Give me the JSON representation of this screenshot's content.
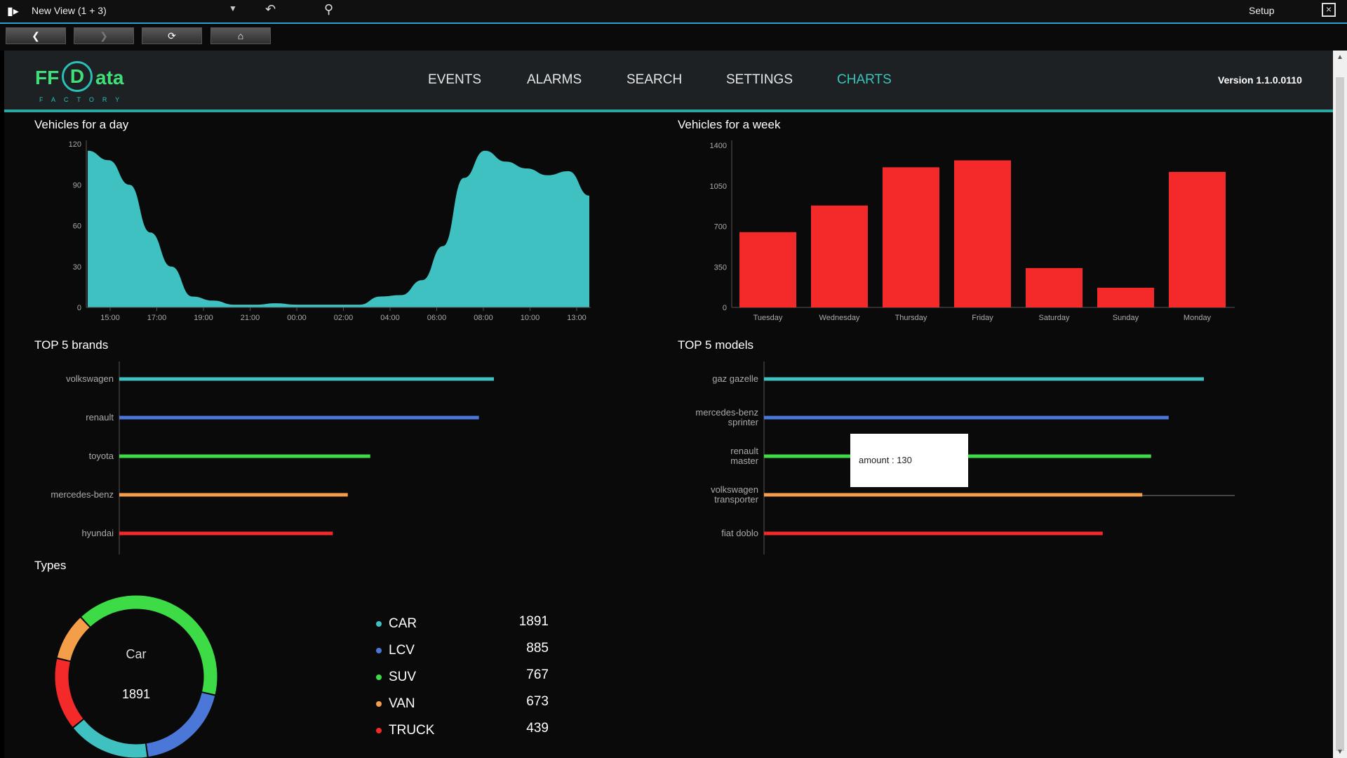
{
  "window": {
    "title": "New View (1 + 3)",
    "setup_label": "Setup"
  },
  "logo": {
    "ff": "FF",
    "d": "D",
    "ata": "ata",
    "factory": "FACTORY"
  },
  "menu": {
    "items": [
      "EVENTS",
      "ALARMS",
      "SEARCH",
      "SETTINGS",
      "CHARTS"
    ],
    "active": "CHARTS"
  },
  "version": "Version 1.1.0.0110",
  "panels": {
    "day_title": "Vehicles for a day",
    "week_title": "Vehicles for a week",
    "brands_title": "TOP 5 brands",
    "models_title": "TOP 5 models",
    "types_title": "Types"
  },
  "tooltip": {
    "text": "amount : 130"
  },
  "donut": {
    "label": "Car",
    "value": "1891"
  },
  "chart_data": [
    {
      "type": "area",
      "color": "#3ec1c0",
      "ylim": [
        0,
        120
      ],
      "yticks": [
        "0",
        "30",
        "60",
        "90",
        "120"
      ],
      "xticks": [
        "15:00",
        "17:00",
        "19:00",
        "21:00",
        "00:00",
        "02:00",
        "04:00",
        "06:00",
        "08:00",
        "10:00",
        "13:00"
      ],
      "values": [
        115,
        108,
        90,
        55,
        30,
        8,
        5,
        2,
        2,
        3,
        2,
        2,
        2,
        2,
        8,
        9,
        20,
        45,
        95,
        115,
        107,
        102,
        97,
        100,
        82
      ]
    },
    {
      "type": "bar",
      "color": "#f42a2a",
      "ylim": [
        0,
        1400
      ],
      "yticks": [
        "0",
        "350",
        "700",
        "1050",
        "1400"
      ],
      "categories": [
        "Tuesday",
        "Wednesday",
        "Thursday",
        "Friday",
        "Saturday",
        "Sunday",
        "Monday"
      ],
      "values": [
        650,
        880,
        1210,
        1270,
        340,
        170,
        1170
      ]
    },
    {
      "type": "bar",
      "orientation": "horizontal",
      "categories": [
        "volkswagen",
        "renault",
        "toyota",
        "mercedes-benz",
        "hyundai"
      ],
      "values": [
        100,
        96,
        67,
        61,
        57
      ],
      "colors": [
        "#3ec1c0",
        "#4b78d8",
        "#3ddc46",
        "#f59e4a",
        "#f42a2a"
      ]
    },
    {
      "type": "bar",
      "orientation": "horizontal",
      "categories": [
        [
          "gaz gazelle"
        ],
        [
          "mercedes-benz",
          "sprinter"
        ],
        [
          "renault",
          "master"
        ],
        [
          "volkswagen",
          "transporter"
        ],
        [
          "fiat doblo"
        ]
      ],
      "values": [
        100,
        92,
        88,
        86,
        77
      ],
      "colors": [
        "#3ec1c0",
        "#4b78d8",
        "#3ddc46",
        "#f59e4a",
        "#f42a2a"
      ]
    },
    {
      "type": "pie",
      "labels": [
        "CAR",
        "LCV",
        "SUV",
        "VAN",
        "TRUCK"
      ],
      "values": [
        1891,
        885,
        767,
        673,
        439
      ],
      "colors": [
        "#3ddc46",
        "#4b78d8",
        "#3ec1c0",
        "#f42a2a",
        "#f59e4a"
      ]
    }
  ],
  "types_legend": [
    {
      "label": "CAR",
      "value": "1891",
      "color": "#3ec1c0"
    },
    {
      "label": "LCV",
      "value": "885",
      "color": "#4b78d8"
    },
    {
      "label": "SUV",
      "value": "767",
      "color": "#3ddc46"
    },
    {
      "label": "VAN",
      "value": "673",
      "color": "#f59e4a"
    },
    {
      "label": "TRUCK",
      "value": "439",
      "color": "#f42a2a"
    }
  ]
}
